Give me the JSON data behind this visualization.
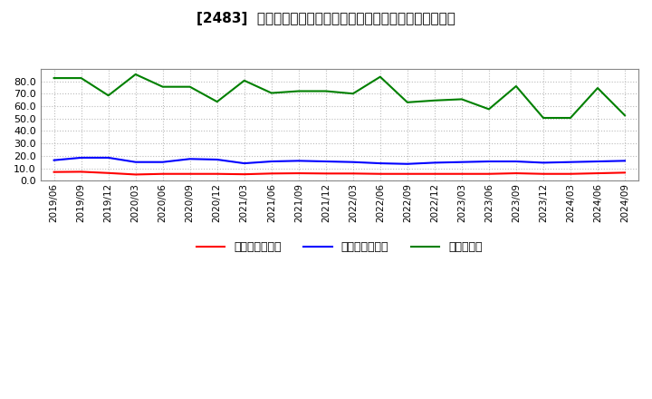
{
  "title": "[2483]  売上債権回転率、買入債務回転率、在庫回転率の推移",
  "x_labels": [
    "2019/06",
    "2019/09",
    "2019/12",
    "2020/03",
    "2020/06",
    "2020/09",
    "2020/12",
    "2021/03",
    "2021/06",
    "2021/09",
    "2021/12",
    "2022/03",
    "2022/06",
    "2022/09",
    "2022/12",
    "2023/03",
    "2023/06",
    "2023/09",
    "2023/12",
    "2024/03",
    "2024/06",
    "2024/09"
  ],
  "receivable_turnover": [
    7.0,
    7.2,
    6.2,
    5.0,
    5.5,
    5.5,
    5.5,
    5.2,
    5.8,
    6.0,
    5.8,
    5.8,
    5.5,
    5.5,
    5.5,
    5.5,
    5.5,
    6.0,
    5.5,
    5.5,
    6.0,
    6.5
  ],
  "payable_turnover": [
    16.5,
    18.5,
    18.5,
    15.0,
    15.0,
    17.5,
    17.0,
    14.0,
    15.5,
    16.0,
    15.5,
    15.0,
    14.0,
    13.5,
    14.5,
    15.0,
    15.5,
    15.5,
    14.5,
    15.0,
    15.5,
    16.0
  ],
  "inventory_turnover": [
    82.5,
    82.5,
    68.5,
    85.5,
    75.5,
    75.5,
    63.5,
    80.5,
    70.5,
    72.0,
    72.0,
    70.0,
    83.5,
    63.0,
    64.5,
    65.5,
    57.5,
    76.0,
    50.5,
    50.5,
    74.5,
    52.5
  ],
  "receivable_color": "#ff0000",
  "payable_color": "#0000ff",
  "inventory_color": "#008000",
  "legend_labels": [
    "売上債権回転率",
    "買入債務回転率",
    "在庫回転率"
  ],
  "ylim": [
    0,
    90
  ],
  "yticks": [
    0.0,
    10.0,
    20.0,
    30.0,
    40.0,
    50.0,
    60.0,
    70.0,
    80.0
  ],
  "background_color": "#ffffff",
  "grid_color": "#aaaaaa"
}
